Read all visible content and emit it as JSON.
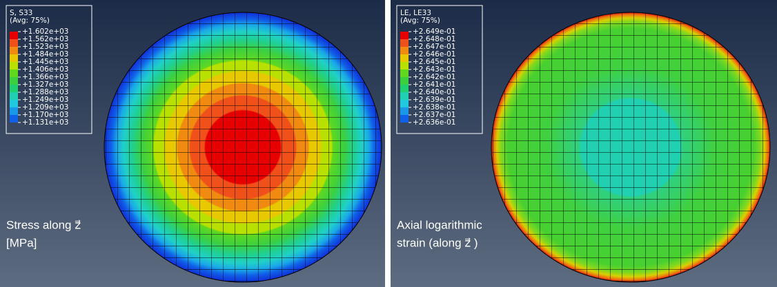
{
  "panels": [
    {
      "legend": {
        "title": [
          "S, S33",
          "(Avg: 75%)"
        ],
        "labels": [
          "+1.602e+03",
          "+1.562e+03",
          "+1.523e+03",
          "+1.484e+03",
          "+1.445e+03",
          "+1.406e+03",
          "+1.366e+03",
          "+1.327e+03",
          "+1.288e+03",
          "+1.249e+03",
          "+1.209e+03",
          "+1.170e+03",
          "+1.131e+03"
        ]
      },
      "caption": [
        "Stress along z⃗",
        "[MPa]"
      ]
    },
    {
      "legend": {
        "title": [
          "LE, LE33",
          "(Avg: 75%)"
        ],
        "labels": [
          "+2.649e-01",
          "+2.648e-01",
          "+2.647e-01",
          "+2.646e-01",
          "+2.645e-01",
          "+2.643e-01",
          "+2.642e-01",
          "+2.641e-01",
          "+2.640e-01",
          "+2.639e-01",
          "+2.638e-01",
          "+2.637e-01",
          "+2.636e-01"
        ]
      },
      "caption": [
        "Axial logarithmic",
        "strain (along z⃗ )"
      ]
    }
  ]
}
